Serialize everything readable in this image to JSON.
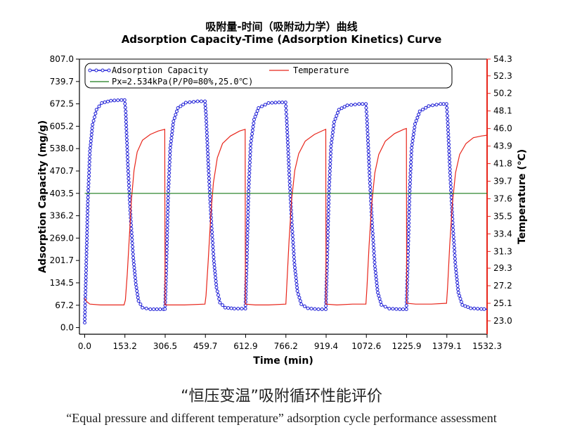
{
  "title_zh": "吸附量-时间（吸附动力学）曲线",
  "title_en": "Adsorption Capacity-Time (Adsorption Kinetics) Curve",
  "caption_zh": "“恒压变温”吸附循环性能评价",
  "caption_en": "“Equal pressure and different temperature” adsorption cycle performance assessment",
  "chart_data": {
    "type": "line",
    "xlabel": "Time (min)",
    "ylabel": "Adsorption Capacity (mg/g)",
    "y2label": "Temperature (℃)",
    "xlim": [
      -20,
      1532.3
    ],
    "ylim": [
      -20,
      807.0
    ],
    "y2lim": [
      21.4,
      54.3
    ],
    "x_ticks": [
      "0.0",
      "153.2",
      "306.5",
      "459.7",
      "612.9",
      "766.2",
      "919.4",
      "1072.6",
      "1225.9",
      "1379.1",
      "1532.3"
    ],
    "y_ticks": [
      "0.0",
      "67.2",
      "134.5",
      "201.7",
      "269.0",
      "336.2",
      "403.5",
      "470.7",
      "538.0",
      "605.2",
      "672.5",
      "739.7",
      "807.0"
    ],
    "y2_ticks": [
      "23.0",
      "25.1",
      "27.2",
      "29.3",
      "31.3",
      "33.4",
      "35.5",
      "37.6",
      "39.7",
      "41.8",
      "43.9",
      "46.0",
      "48.1",
      "50.2",
      "52.3",
      "54.3"
    ],
    "legend_placement": "top",
    "series": [
      {
        "name": "Adsorption Capacity",
        "axis": "left",
        "color": "#1f1fd6",
        "marker": "circle",
        "points": [
          [
            0,
            15
          ],
          [
            5,
            160
          ],
          [
            12,
            380
          ],
          [
            20,
            530
          ],
          [
            30,
            610
          ],
          [
            45,
            655
          ],
          [
            65,
            675
          ],
          [
            100,
            682
          ],
          [
            140,
            684
          ],
          [
            152,
            684
          ],
          [
            156,
            650
          ],
          [
            165,
            480
          ],
          [
            175,
            330
          ],
          [
            185,
            210
          ],
          [
            195,
            130
          ],
          [
            205,
            80
          ],
          [
            220,
            60
          ],
          [
            250,
            55
          ],
          [
            300,
            55
          ],
          [
            306,
            56
          ],
          [
            311,
            180
          ],
          [
            318,
            400
          ],
          [
            326,
            540
          ],
          [
            338,
            620
          ],
          [
            355,
            660
          ],
          [
            385,
            676
          ],
          [
            430,
            680
          ],
          [
            458,
            680
          ],
          [
            462,
            640
          ],
          [
            472,
            470
          ],
          [
            482,
            320
          ],
          [
            492,
            200
          ],
          [
            502,
            120
          ],
          [
            515,
            75
          ],
          [
            535,
            60
          ],
          [
            570,
            57
          ],
          [
            612,
            57
          ],
          [
            617,
            190
          ],
          [
            624,
            410
          ],
          [
            632,
            550
          ],
          [
            645,
            625
          ],
          [
            662,
            660
          ],
          [
            700,
            675
          ],
          [
            740,
            677
          ],
          [
            765,
            677
          ],
          [
            769,
            630
          ],
          [
            779,
            460
          ],
          [
            789,
            310
          ],
          [
            799,
            190
          ],
          [
            810,
            110
          ],
          [
            825,
            70
          ],
          [
            850,
            58
          ],
          [
            890,
            55
          ],
          [
            918,
            55
          ],
          [
            923,
            190
          ],
          [
            930,
            405
          ],
          [
            938,
            545
          ],
          [
            950,
            618
          ],
          [
            968,
            655
          ],
          [
            1000,
            668
          ],
          [
            1045,
            672
          ],
          [
            1071,
            672
          ],
          [
            1075,
            625
          ],
          [
            1085,
            455
          ],
          [
            1095,
            305
          ],
          [
            1105,
            185
          ],
          [
            1116,
            105
          ],
          [
            1130,
            68
          ],
          [
            1160,
            57
          ],
          [
            1200,
            55
          ],
          [
            1225,
            55
          ],
          [
            1230,
            185
          ],
          [
            1237,
            400
          ],
          [
            1245,
            540
          ],
          [
            1258,
            612
          ],
          [
            1276,
            650
          ],
          [
            1310,
            666
          ],
          [
            1355,
            672
          ],
          [
            1378,
            672
          ],
          [
            1382,
            625
          ],
          [
            1392,
            455
          ],
          [
            1402,
            305
          ],
          [
            1412,
            185
          ],
          [
            1423,
            105
          ],
          [
            1438,
            68
          ],
          [
            1470,
            58
          ],
          [
            1510,
            56
          ],
          [
            1532,
            55
          ]
        ]
      },
      {
        "name": "Temperature",
        "axis": "right",
        "color": "#e8261b",
        "points": [
          [
            0,
            25.7
          ],
          [
            8,
            25.3
          ],
          [
            20,
            25.0
          ],
          [
            60,
            24.9
          ],
          [
            100,
            24.9
          ],
          [
            150,
            24.9
          ],
          [
            155,
            25.5
          ],
          [
            162,
            28.5
          ],
          [
            170,
            33.0
          ],
          [
            178,
            37.5
          ],
          [
            188,
            41.0
          ],
          [
            200,
            43.2
          ],
          [
            220,
            44.6
          ],
          [
            250,
            45.3
          ],
          [
            280,
            45.7
          ],
          [
            305,
            45.9
          ],
          [
            306,
            24.9
          ],
          [
            340,
            24.9
          ],
          [
            380,
            24.9
          ],
          [
            458,
            25.0
          ],
          [
            462,
            26.0
          ],
          [
            470,
            30.0
          ],
          [
            480,
            35.5
          ],
          [
            490,
            39.5
          ],
          [
            505,
            42.5
          ],
          [
            525,
            44.2
          ],
          [
            555,
            45.1
          ],
          [
            590,
            45.7
          ],
          [
            611,
            45.9
          ],
          [
            612,
            25.0
          ],
          [
            650,
            24.9
          ],
          [
            700,
            24.9
          ],
          [
            766,
            25.0
          ],
          [
            770,
            27.5
          ],
          [
            778,
            32.5
          ],
          [
            788,
            37.5
          ],
          [
            800,
            41.0
          ],
          [
            815,
            43.0
          ],
          [
            840,
            44.5
          ],
          [
            875,
            45.3
          ],
          [
            910,
            45.8
          ],
          [
            918,
            45.9
          ],
          [
            919,
            25.0
          ],
          [
            960,
            24.9
          ],
          [
            1020,
            25.0
          ],
          [
            1071,
            25.0
          ],
          [
            1075,
            27.0
          ],
          [
            1083,
            32.0
          ],
          [
            1093,
            37.0
          ],
          [
            1105,
            40.7
          ],
          [
            1120,
            42.9
          ],
          [
            1145,
            44.5
          ],
          [
            1180,
            45.4
          ],
          [
            1215,
            45.9
          ],
          [
            1225,
            46.0
          ],
          [
            1226,
            25.1
          ],
          [
            1260,
            25.0
          ],
          [
            1320,
            25.0
          ],
          [
            1378,
            25.1
          ],
          [
            1382,
            27.0
          ],
          [
            1390,
            32.0
          ],
          [
            1400,
            37.0
          ],
          [
            1412,
            40.7
          ],
          [
            1428,
            42.9
          ],
          [
            1452,
            44.2
          ],
          [
            1480,
            44.9
          ],
          [
            1510,
            45.1
          ],
          [
            1532,
            45.2
          ]
        ]
      },
      {
        "name": "Px=2.534kPa(P/P0=80%,25.0℃)",
        "axis": "left",
        "color": "#1a7a1a",
        "points": [
          [
            0,
            403.5
          ],
          [
            1532.3,
            403.5
          ]
        ]
      }
    ]
  }
}
